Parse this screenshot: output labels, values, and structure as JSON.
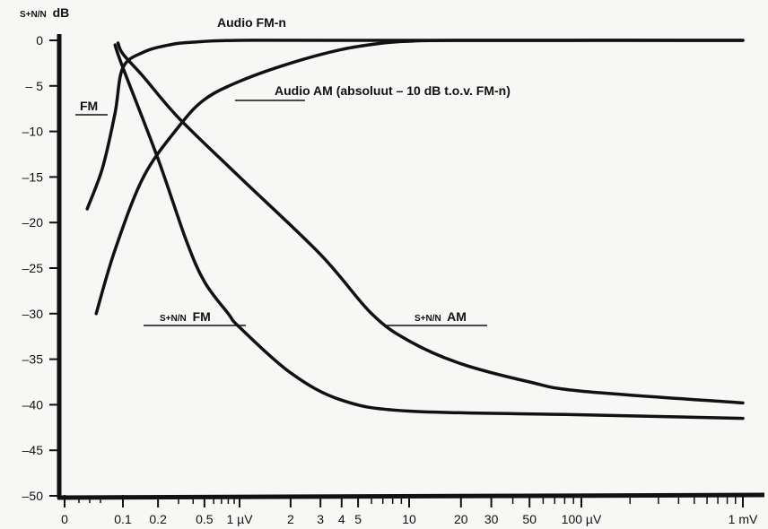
{
  "chart_data": {
    "type": "line",
    "ylabel_prefix": "S+N/N",
    "ylabel_unit": "dB",
    "ylim": [
      -50,
      0
    ],
    "yticks": [
      {
        "value": 0,
        "label": "0"
      },
      {
        "value": -5,
        "label": "– 5"
      },
      {
        "value": -10,
        "label": "–10"
      },
      {
        "value": -15,
        "label": "–15"
      },
      {
        "value": -20,
        "label": "–20"
      },
      {
        "value": -25,
        "label": "–25"
      },
      {
        "value": -30,
        "label": "–30"
      },
      {
        "value": -35,
        "label": "–35"
      },
      {
        "value": -40,
        "label": "–40"
      },
      {
        "value": -45,
        "label": "–45"
      },
      {
        "value": -50,
        "label": "–50"
      }
    ],
    "xscale": "log (µV, with 0 origin)",
    "xticks": [
      {
        "value": 0,
        "label": "0"
      },
      {
        "value": 0.1,
        "label": "0.1"
      },
      {
        "value": 0.2,
        "label": "0.2"
      },
      {
        "value": 0.5,
        "label": "0.5"
      },
      {
        "value": 1,
        "label": "1 µV"
      },
      {
        "value": 2,
        "label": "2"
      },
      {
        "value": 3,
        "label": "3"
      },
      {
        "value": 4,
        "label": "4"
      },
      {
        "value": 5,
        "label": "5"
      },
      {
        "value": 10,
        "label": "10"
      },
      {
        "value": 20,
        "label": "20"
      },
      {
        "value": 30,
        "label": "30"
      },
      {
        "value": 50,
        "label": "50"
      },
      {
        "value": 100,
        "label": "100 µV"
      },
      {
        "value": 1000,
        "label": "1 mV"
      }
    ],
    "series": [
      {
        "name": "Audio FM-n",
        "points": [
          [
            0.02,
            -18.5
          ],
          [
            0.04,
            -14
          ],
          [
            0.07,
            -8
          ],
          [
            0.1,
            -3
          ],
          [
            0.15,
            -1.3
          ],
          [
            0.25,
            -0.5
          ],
          [
            0.4,
            -0.2
          ],
          [
            1,
            0
          ],
          [
            5,
            0
          ],
          [
            1000,
            0
          ]
        ]
      },
      {
        "name": "Audio AM (absoluut – 10 dB t.o.v. FM-n)",
        "points": [
          [
            0.03,
            -30
          ],
          [
            0.07,
            -23
          ],
          [
            0.15,
            -15
          ],
          [
            0.3,
            -9.5
          ],
          [
            0.5,
            -6.5
          ],
          [
            1,
            -4.5
          ],
          [
            2,
            -2.5
          ],
          [
            4,
            -1
          ],
          [
            7,
            -0.3
          ],
          [
            10,
            -0.1
          ],
          [
            20,
            0
          ],
          [
            1000,
            0
          ]
        ]
      },
      {
        "name": "S+N/N FM",
        "points": [
          [
            0.07,
            -0.5
          ],
          [
            0.1,
            -3
          ],
          [
            0.2,
            -13
          ],
          [
            0.35,
            -22
          ],
          [
            0.5,
            -26.5
          ],
          [
            0.8,
            -30
          ],
          [
            1,
            -31.5
          ],
          [
            2,
            -36.5
          ],
          [
            4,
            -39.5
          ],
          [
            10,
            -40.7
          ],
          [
            100,
            -41.1
          ],
          [
            1000,
            -41.5
          ]
        ]
      },
      {
        "name": "S+N/N AM",
        "points": [
          [
            0.08,
            -0.3
          ],
          [
            0.1,
            -1.5
          ],
          [
            0.15,
            -4
          ],
          [
            0.3,
            -8.5
          ],
          [
            1,
            -15
          ],
          [
            3,
            -23.5
          ],
          [
            6,
            -30
          ],
          [
            10,
            -33
          ],
          [
            20,
            -35.5
          ],
          [
            50,
            -37.5
          ],
          [
            100,
            -38.5
          ],
          [
            1000,
            -39.8
          ]
        ]
      }
    ],
    "annotations": [
      {
        "series": 0,
        "text": "Audio FM-n"
      },
      {
        "series": 1,
        "text": "Audio AM (absoluut – 10 dB t.o.v. FM-n)"
      },
      {
        "series": 0,
        "text": "FM"
      },
      {
        "series": 2,
        "prefix": "S+N/N",
        "text": "FM"
      },
      {
        "series": 3,
        "prefix": "S+N/N",
        "text": "AM"
      }
    ]
  }
}
